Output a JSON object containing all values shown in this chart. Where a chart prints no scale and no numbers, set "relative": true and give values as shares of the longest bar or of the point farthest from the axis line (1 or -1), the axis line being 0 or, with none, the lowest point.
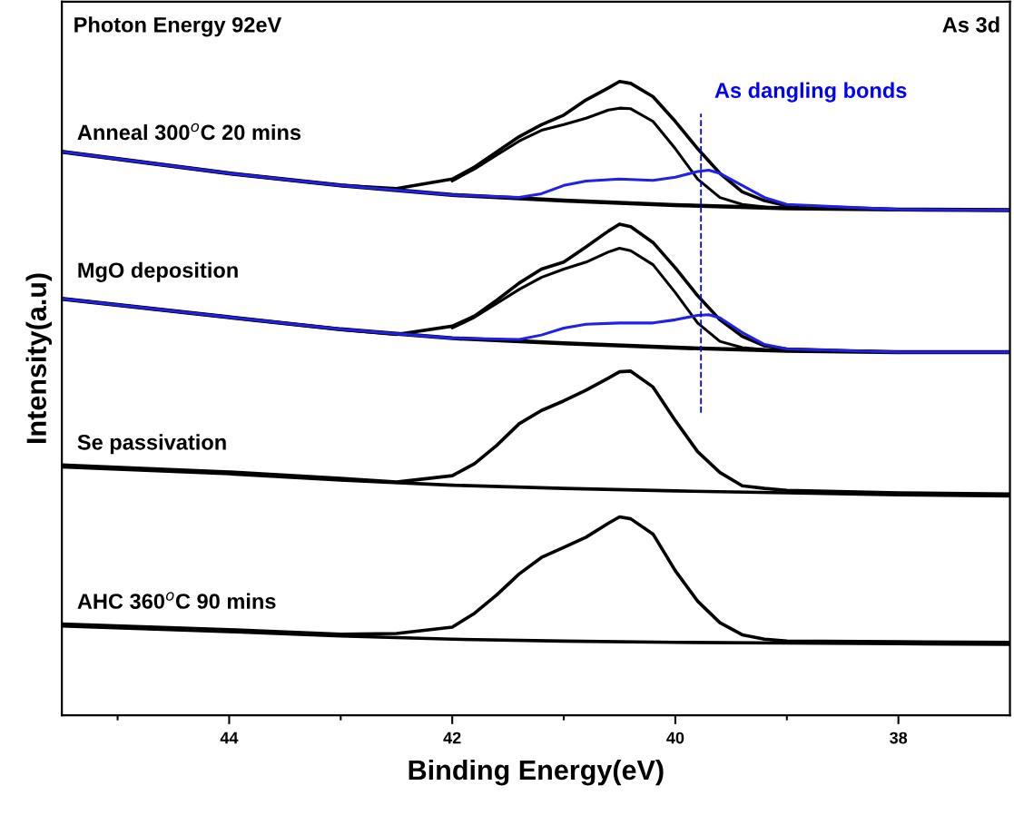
{
  "chart_data": {
    "type": "line",
    "relative": true,
    "xlabel": "Binding Energy(eV)",
    "ylabel": "Intensity(a.u)",
    "xlim": [
      45.5,
      37.0
    ],
    "xticks": [
      {
        "value": 45,
        "label": null
      },
      44,
      {
        "value": 43,
        "label": null
      },
      42,
      {
        "value": 41,
        "label": null
      },
      40,
      {
        "value": 39,
        "label": null
      },
      38
    ],
    "grid": false,
    "legend": false,
    "marker": "none",
    "line_style": "solid",
    "annotations": [
      "Photon Energy 92eV",
      "As 3d",
      "Anneal 300$^{o}$C 20 mins",
      "MgO deposition",
      "Se passivation",
      "AHC 360$^{o}$C 90 mins"
    ],
    "ref_lines": [
      {
        "axis": "x",
        "value": 39.77,
        "label": "As dangling bonds",
        "color": "#0000ff",
        "line_style": "dashed"
      }
    ],
    "series": [
      {
        "color": "#000000",
        "x": [
          45.5,
          44,
          43,
          42,
          41,
          40,
          39,
          38,
          37
        ],
        "values": [
          0.889,
          0.855,
          0.836,
          0.821,
          0.812,
          0.805,
          0.8,
          0.798,
          0.797
        ]
      },
      {
        "color": "#000000",
        "x": [
          45.5,
          44,
          43,
          42.5,
          42,
          41.8,
          41.6,
          41.4,
          41.2,
          41,
          40.8,
          40.6,
          40.5,
          40.4,
          40.2,
          40,
          39.8,
          39.6,
          39.4,
          39.2,
          39,
          38,
          37
        ],
        "values": [
          0.889,
          0.855,
          0.836,
          0.831,
          0.846,
          0.865,
          0.889,
          0.913,
          0.932,
          0.947,
          0.971,
          0.99,
          1.0,
          0.997,
          0.976,
          0.937,
          0.894,
          0.855,
          0.826,
          0.812,
          0.804,
          0.798,
          0.797
        ]
      },
      {
        "color": "#000000",
        "x": [
          42,
          41.8,
          41.6,
          41.4,
          41.2,
          41,
          40.8,
          40.6,
          40.5,
          40.4,
          40.2,
          40,
          39.8,
          39.6,
          39.4,
          39.2
        ],
        "values": [
          0.843,
          0.862,
          0.884,
          0.906,
          0.923,
          0.932,
          0.942,
          0.955,
          0.958,
          0.957,
          0.937,
          0.894,
          0.846,
          0.817,
          0.806,
          0.802
        ]
      },
      {
        "color": "#2020e6",
        "x": [
          45.5,
          44,
          43,
          42,
          41.4,
          41.2,
          41,
          40.8,
          40.5,
          40.2,
          40,
          39.8,
          39.7,
          39.6,
          39.4,
          39.2,
          39,
          38,
          37
        ],
        "values": [
          0.889,
          0.855,
          0.836,
          0.821,
          0.817,
          0.823,
          0.836,
          0.843,
          0.846,
          0.844,
          0.849,
          0.858,
          0.86,
          0.855,
          0.836,
          0.817,
          0.806,
          0.798,
          0.797
        ]
      },
      {
        "color": "#000000",
        "x": [
          45.5,
          44,
          43,
          42,
          41,
          40,
          39,
          38,
          37
        ],
        "values": [
          0.657,
          0.628,
          0.609,
          0.595,
          0.587,
          0.58,
          0.575,
          0.573,
          0.573
        ]
      },
      {
        "color": "#000000",
        "x": [
          45.5,
          44,
          43,
          42.5,
          42,
          41.8,
          41.6,
          41.4,
          41.2,
          41,
          40.8,
          40.6,
          40.5,
          40.4,
          40.2,
          40,
          39.8,
          39.6,
          39.4,
          39.2,
          39,
          38,
          37
        ],
        "values": [
          0.657,
          0.628,
          0.609,
          0.601,
          0.614,
          0.63,
          0.655,
          0.682,
          0.704,
          0.715,
          0.739,
          0.764,
          0.775,
          0.771,
          0.746,
          0.706,
          0.662,
          0.624,
          0.598,
          0.583,
          0.578,
          0.573,
          0.573
        ]
      },
      {
        "color": "#000000",
        "x": [
          42,
          41.8,
          41.6,
          41.4,
          41.2,
          41,
          40.8,
          40.6,
          40.5,
          40.4,
          40.2,
          40,
          39.8,
          39.6,
          39.4,
          39.2
        ],
        "values": [
          0.611,
          0.628,
          0.65,
          0.672,
          0.691,
          0.704,
          0.715,
          0.731,
          0.737,
          0.733,
          0.711,
          0.667,
          0.619,
          0.59,
          0.58,
          0.577
        ]
      },
      {
        "color": "#2020e6",
        "x": [
          45.5,
          44,
          43,
          42,
          41.4,
          41.2,
          41,
          40.8,
          40.5,
          40.2,
          40,
          39.8,
          39.7,
          39.6,
          39.4,
          39.2,
          39,
          38,
          37
        ],
        "values": [
          0.657,
          0.628,
          0.609,
          0.595,
          0.593,
          0.6,
          0.611,
          0.617,
          0.619,
          0.619,
          0.624,
          0.631,
          0.632,
          0.627,
          0.604,
          0.585,
          0.578,
          0.573,
          0.573
        ]
      },
      {
        "color": "#000000",
        "x": [
          45.5,
          44,
          43,
          42,
          41,
          40,
          39,
          38,
          37
        ],
        "values": [
          0.392,
          0.381,
          0.371,
          0.363,
          0.358,
          0.354,
          0.351,
          0.348,
          0.346
        ]
      },
      {
        "color": "#000000",
        "x": [
          45.5,
          44,
          43,
          42.5,
          42,
          41.8,
          41.6,
          41.4,
          41.2,
          41,
          40.8,
          40.6,
          40.5,
          40.4,
          40.2,
          40,
          39.8,
          39.6,
          39.4,
          39.2,
          39,
          38,
          37
        ],
        "values": [
          0.395,
          0.384,
          0.374,
          0.368,
          0.378,
          0.397,
          0.426,
          0.46,
          0.481,
          0.496,
          0.513,
          0.532,
          0.542,
          0.543,
          0.518,
          0.465,
          0.416,
          0.383,
          0.362,
          0.358,
          0.355,
          0.351,
          0.349
        ]
      },
      {
        "color": "#000000",
        "x": [
          45.5,
          44,
          43,
          42,
          41,
          40,
          39,
          38,
          37
        ],
        "values": [
          0.141,
          0.132,
          0.125,
          0.12,
          0.117,
          0.115,
          0.114,
          0.113,
          0.112
        ]
      },
      {
        "color": "#000000",
        "x": [
          45.5,
          44,
          43,
          42.5,
          42,
          41.8,
          41.6,
          41.4,
          41.2,
          41,
          40.8,
          40.6,
          40.5,
          40.4,
          40.2,
          40,
          39.8,
          39.6,
          39.4,
          39.2,
          39,
          38,
          37
        ],
        "values": [
          0.144,
          0.135,
          0.128,
          0.129,
          0.139,
          0.161,
          0.19,
          0.223,
          0.249,
          0.265,
          0.281,
          0.303,
          0.313,
          0.31,
          0.286,
          0.228,
          0.18,
          0.146,
          0.127,
          0.12,
          0.117,
          0.116,
          0.115
        ]
      }
    ]
  }
}
